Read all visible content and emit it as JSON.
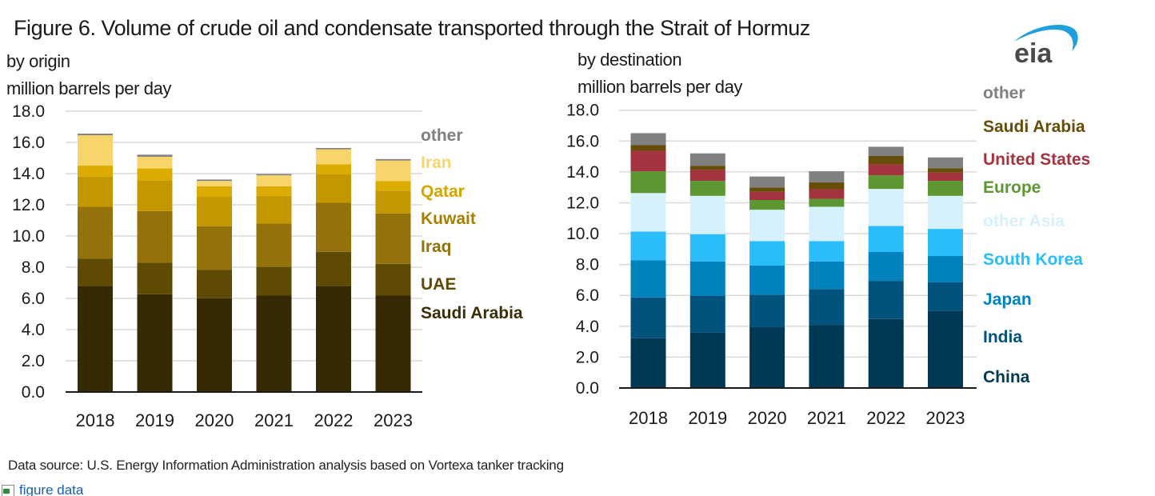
{
  "figure": {
    "title": "Figure 6. Volume of crude oil and condensate transported through the Strait of Hormuz",
    "source": "Data source: U.S. Energy Information Administration analysis based on Vortexa tanker tracking",
    "data_link_label": "figure data",
    "logo_text": "eia"
  },
  "chart_data": [
    {
      "type": "bar",
      "stacked": true,
      "title": "by origin",
      "ylabel": "million barrels per day",
      "xlabel": "",
      "ylim": [
        0,
        18
      ],
      "yticks": [
        "0.0",
        "2.0",
        "4.0",
        "6.0",
        "8.0",
        "10.0",
        "12.0",
        "14.0",
        "16.0",
        "18.0"
      ],
      "grid": true,
      "legend_position": "right",
      "categories": [
        "2018",
        "2019",
        "2020",
        "2021",
        "2022",
        "2023"
      ],
      "series": [
        {
          "name": "Saudi Arabia",
          "color": "#352a03",
          "label_color": "#3a2e05",
          "values": [
            6.8,
            6.27,
            6.01,
            6.18,
            6.79,
            6.18
          ]
        },
        {
          "name": "UAE",
          "color": "#5f4a03",
          "label_color": "#5f4a03",
          "values": [
            1.74,
            2.01,
            1.83,
            1.84,
            2.19,
            2.03
          ]
        },
        {
          "name": "Iraq",
          "color": "#93720a",
          "label_color": "#93720a",
          "values": [
            3.33,
            3.32,
            2.79,
            2.78,
            3.15,
            3.24
          ]
        },
        {
          "name": "Kuwait",
          "color": "#c49700",
          "label_color": "#a88000",
          "values": [
            1.94,
            1.94,
            1.88,
            1.77,
            1.82,
            1.46
          ]
        },
        {
          "name": "Qatar",
          "color": "#dbab00",
          "label_color": "#d4a400",
          "values": [
            0.7,
            0.79,
            0.68,
            0.62,
            0.65,
            0.62
          ]
        },
        {
          "name": "Iran",
          "color": "#f8d56b",
          "label_color": "#f8d56b",
          "values": [
            1.95,
            0.75,
            0.34,
            0.7,
            0.96,
            1.31
          ]
        },
        {
          "name": "other",
          "color": "#7f7f7f",
          "label_color": "#7f7f7f",
          "values": [
            0.1,
            0.13,
            0.09,
            0.08,
            0.08,
            0.09
          ]
        }
      ]
    },
    {
      "type": "bar",
      "stacked": true,
      "title": "by destination",
      "ylabel": "million barrels per day",
      "xlabel": "",
      "ylim": [
        0,
        18
      ],
      "yticks": [
        "0.0",
        "2.0",
        "4.0",
        "6.0",
        "8.0",
        "10.0",
        "12.0",
        "14.0",
        "16.0",
        "18.0"
      ],
      "grid": true,
      "legend_position": "right",
      "categories": [
        "2018",
        "2019",
        "2020",
        "2021",
        "2022",
        "2023"
      ],
      "series": [
        {
          "name": "China",
          "color": "#003953",
          "label_color": "#003953",
          "values": [
            3.23,
            3.58,
            3.94,
            4.09,
            4.47,
            5.01
          ]
        },
        {
          "name": "India",
          "color": "#02527e",
          "label_color": "#02527e",
          "values": [
            2.64,
            2.4,
            2.11,
            2.32,
            2.47,
            1.85
          ]
        },
        {
          "name": "Japan",
          "color": "#0083bd",
          "label_color": "#0083bd",
          "values": [
            2.4,
            2.21,
            1.88,
            1.78,
            1.87,
            1.69
          ]
        },
        {
          "name": "South Korea",
          "color": "#2bbcfc",
          "label_color": "#2bbcfc",
          "values": [
            1.87,
            1.78,
            1.59,
            1.33,
            1.69,
            1.76
          ]
        },
        {
          "name": "other Asia",
          "color": "#d6f1fc",
          "label_color": "#d6f1fc",
          "values": [
            2.49,
            2.48,
            2.03,
            2.22,
            2.4,
            2.14
          ]
        },
        {
          "name": "Europe",
          "color": "#5d9731",
          "label_color": "#5d9731",
          "values": [
            1.41,
            0.97,
            0.63,
            0.52,
            0.88,
            0.97
          ]
        },
        {
          "name": "United States",
          "color": "#a3333e",
          "label_color": "#a3333e",
          "values": [
            1.33,
            0.71,
            0.53,
            0.62,
            0.71,
            0.54
          ]
        },
        {
          "name": "Saudi Arabia",
          "color": "#664d09",
          "label_color": "#664d09",
          "values": [
            0.36,
            0.27,
            0.28,
            0.45,
            0.54,
            0.27
          ]
        },
        {
          "name": "other",
          "color": "#808080",
          "label_color": "#808080",
          "values": [
            0.78,
            0.8,
            0.71,
            0.71,
            0.6,
            0.71
          ]
        }
      ]
    }
  ]
}
